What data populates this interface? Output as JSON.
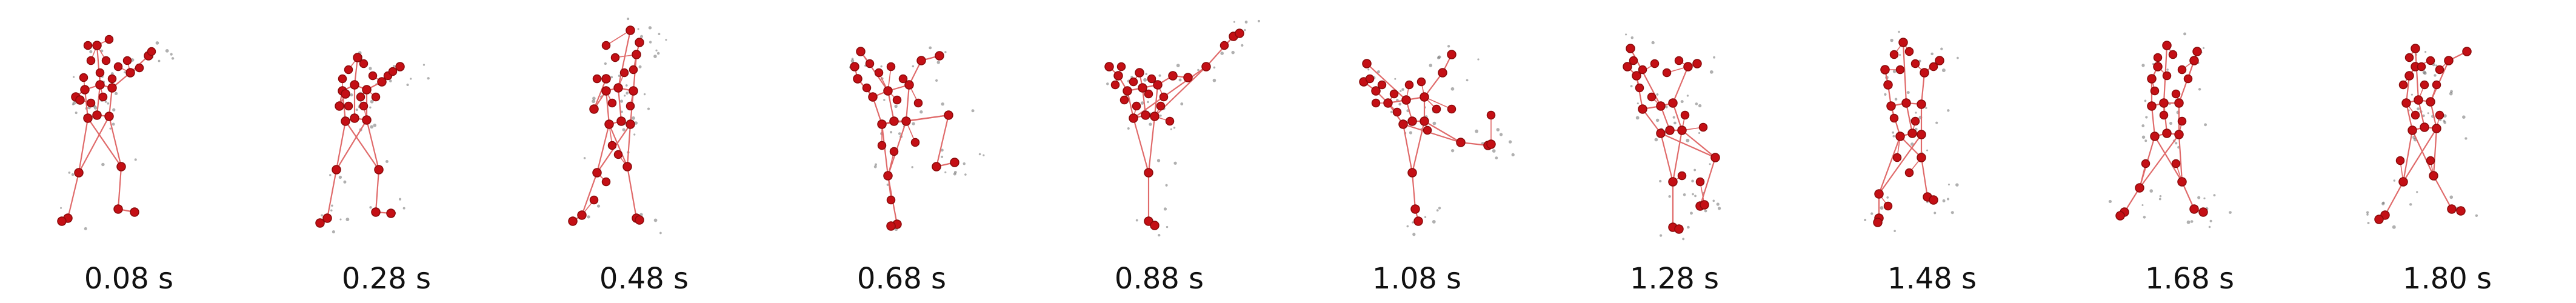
{
  "colors": {
    "bone": "#e06a6a",
    "joint": "#c40f15",
    "joint_edge": "#8a0a0a",
    "trace": "#707070",
    "caption": "#111111"
  },
  "frames": [
    {
      "label": "0.08 s",
      "pose": "arm-raised-right"
    },
    {
      "label": "0.28 s",
      "pose": "standing"
    },
    {
      "label": "0.48 s",
      "pose": "stepping"
    },
    {
      "label": "0.68 s",
      "pose": "knee-raised"
    },
    {
      "label": "0.88 s",
      "pose": "high-kick"
    },
    {
      "label": "1.08 s",
      "pose": "side-kick"
    },
    {
      "label": "1.28 s",
      "pose": "leaning"
    },
    {
      "label": "1.48 s",
      "pose": "lunge"
    },
    {
      "label": "1.68 s",
      "pose": "recovering"
    },
    {
      "label": "1.80 s",
      "pose": "standing"
    }
  ]
}
